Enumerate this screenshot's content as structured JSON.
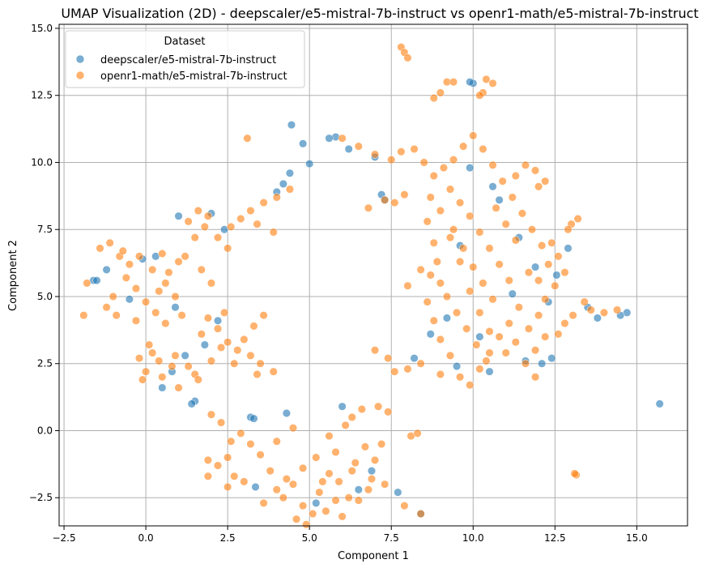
{
  "chart_data": {
    "type": "scatter",
    "title": "UMAP Visualization (2D) - deepscaler/e5-mistral-7b-instruct vs openr1-math/e5-mistral-7b-instruct",
    "xlabel": "Component 1",
    "ylabel": "Component 2",
    "xlim": [
      -2.65,
      16.55
    ],
    "ylim": [
      -3.55,
      15.15
    ],
    "xticks": [
      -2.5,
      0.0,
      2.5,
      5.0,
      7.5,
      10.0,
      12.5,
      15.0
    ],
    "yticks": [
      -2.5,
      0.0,
      2.5,
      5.0,
      7.5,
      10.0,
      12.5,
      15.0
    ],
    "xtick_labels": [
      "−2.5",
      "0.0",
      "2.5",
      "5.0",
      "7.5",
      "10.0",
      "12.5",
      "15.0"
    ],
    "ytick_labels": [
      "−2.5",
      "0.0",
      "2.5",
      "5.0",
      "7.5",
      "10.0",
      "12.5",
      "15.0"
    ],
    "grid": true,
    "legend": {
      "title": "Dataset",
      "placement": "top-left"
    },
    "series": [
      {
        "name": "deepscaler/e5-mistral-7b-instruct",
        "color": "#1f77b4",
        "points": [
          [
            15.7,
            1.0
          ],
          [
            4.45,
            11.4
          ],
          [
            4.8,
            10.7
          ],
          [
            5.0,
            9.95
          ],
          [
            10.0,
            12.95
          ],
          [
            9.9,
            13.0
          ],
          [
            14.7,
            4.4
          ],
          [
            14.5,
            4.3
          ],
          [
            12.9,
            6.8
          ],
          [
            12.55,
            5.8
          ],
          [
            12.3,
            4.8
          ],
          [
            12.4,
            2.7
          ],
          [
            12.1,
            2.5
          ],
          [
            4.3,
            0.65
          ],
          [
            3.35,
            -2.1
          ],
          [
            7.7,
            -2.3
          ],
          [
            8.4,
            -3.1
          ],
          [
            -1.6,
            5.6
          ],
          [
            -1.5,
            5.6
          ],
          [
            -1.2,
            6.0
          ],
          [
            1.5,
            1.1
          ],
          [
            1.4,
            1.0
          ],
          [
            -0.1,
            6.4
          ],
          [
            0.3,
            6.5
          ],
          [
            5.8,
            10.95
          ],
          [
            5.6,
            10.9
          ],
          [
            7.2,
            8.8
          ],
          [
            7.3,
            8.6
          ],
          [
            9.5,
            2.4
          ],
          [
            10.5,
            2.2
          ],
          [
            11.6,
            2.6
          ],
          [
            8.7,
            3.6
          ],
          [
            2.0,
            8.1
          ],
          [
            2.4,
            7.5
          ],
          [
            1.0,
            8.0
          ],
          [
            3.2,
            0.5
          ],
          [
            3.3,
            0.45
          ],
          [
            6.0,
            0.9
          ],
          [
            4.0,
            8.9
          ],
          [
            4.2,
            9.2
          ],
          [
            4.4,
            9.6
          ],
          [
            9.2,
            4.2
          ],
          [
            10.2,
            3.5
          ],
          [
            11.2,
            5.1
          ],
          [
            9.6,
            6.9
          ],
          [
            10.8,
            8.6
          ],
          [
            0.8,
            2.2
          ],
          [
            1.2,
            2.8
          ],
          [
            0.5,
            1.6
          ],
          [
            5.2,
            -2.7
          ],
          [
            6.5,
            -2.2
          ],
          [
            6.9,
            -1.5
          ],
          [
            13.8,
            4.2
          ],
          [
            13.5,
            4.6
          ],
          [
            1.8,
            3.2
          ],
          [
            2.2,
            4.1
          ],
          [
            0.9,
            4.6
          ],
          [
            -0.5,
            4.9
          ],
          [
            11.4,
            7.2
          ],
          [
            11.9,
            6.1
          ],
          [
            6.2,
            10.5
          ],
          [
            7.0,
            10.2
          ],
          [
            8.2,
            2.7
          ],
          [
            9.9,
            9.8
          ],
          [
            10.6,
            9.1
          ]
        ]
      },
      {
        "name": "openr1-math/e5-mistral-7b-instruct",
        "color": "#ff7f0e",
        "points": [
          [
            7.8,
            14.3
          ],
          [
            7.9,
            14.1
          ],
          [
            8.0,
            13.9
          ],
          [
            9.2,
            13.0
          ],
          [
            9.4,
            13.0
          ],
          [
            9.0,
            12.6
          ],
          [
            8.8,
            12.4
          ],
          [
            10.4,
            13.1
          ],
          [
            10.6,
            12.95
          ],
          [
            10.3,
            12.6
          ],
          [
            10.2,
            12.5
          ],
          [
            3.1,
            10.9
          ],
          [
            13.15,
            -1.65
          ],
          [
            13.1,
            -1.6
          ],
          [
            13.0,
            7.7
          ],
          [
            13.2,
            7.9
          ],
          [
            12.9,
            7.5
          ],
          [
            13.05,
            4.3
          ],
          [
            13.6,
            4.5
          ],
          [
            14.0,
            4.4
          ],
          [
            14.4,
            4.5
          ],
          [
            13.4,
            4.8
          ],
          [
            12.8,
            4.0
          ],
          [
            12.6,
            3.6
          ],
          [
            -1.9,
            4.3
          ],
          [
            -1.8,
            5.5
          ],
          [
            -1.0,
            5.0
          ],
          [
            -0.8,
            6.5
          ],
          [
            -0.5,
            6.2
          ],
          [
            0.2,
            6.0
          ],
          [
            0.6,
            5.5
          ],
          [
            0.9,
            5.0
          ],
          [
            1.2,
            6.5
          ],
          [
            1.6,
            8.2
          ],
          [
            1.9,
            8.0
          ],
          [
            1.3,
            7.8
          ],
          [
            2.6,
            7.6
          ],
          [
            2.9,
            7.9
          ],
          [
            3.2,
            8.2
          ],
          [
            3.6,
            8.5
          ],
          [
            4.0,
            8.7
          ],
          [
            4.4,
            9.0
          ],
          [
            3.4,
            7.7
          ],
          [
            3.9,
            7.4
          ],
          [
            0.1,
            3.2
          ],
          [
            0.4,
            2.6
          ],
          [
            0.0,
            2.2
          ],
          [
            0.8,
            2.4
          ],
          [
            1.0,
            1.6
          ],
          [
            1.5,
            2.1
          ],
          [
            1.6,
            1.9
          ],
          [
            1.7,
            3.6
          ],
          [
            1.9,
            4.2
          ],
          [
            2.2,
            3.8
          ],
          [
            2.5,
            3.3
          ],
          [
            2.8,
            3.0
          ],
          [
            3.2,
            2.8
          ],
          [
            3.5,
            2.5
          ],
          [
            3.9,
            2.2
          ],
          [
            2.4,
            4.4
          ],
          [
            1.7,
            6.0
          ],
          [
            2.0,
            5.5
          ],
          [
            2.0,
            0.6
          ],
          [
            2.3,
            0.3
          ],
          [
            2.6,
            -0.4
          ],
          [
            2.5,
            -1.0
          ],
          [
            2.2,
            -1.3
          ],
          [
            1.9,
            -1.1
          ],
          [
            1.9,
            -1.7
          ],
          [
            2.9,
            -0.1
          ],
          [
            3.2,
            -0.5
          ],
          [
            3.5,
            -0.9
          ],
          [
            3.8,
            -1.5
          ],
          [
            3.6,
            -2.7
          ],
          [
            4.0,
            -2.2
          ],
          [
            4.3,
            -1.8
          ],
          [
            4.6,
            -3.3
          ],
          [
            4.9,
            -3.5
          ],
          [
            5.1,
            -3.1
          ],
          [
            5.3,
            -2.3
          ],
          [
            5.6,
            -1.6
          ],
          [
            5.8,
            -0.8
          ],
          [
            5.9,
            -1.9
          ],
          [
            6.2,
            -2.5
          ],
          [
            6.4,
            -1.2
          ],
          [
            6.7,
            -0.6
          ],
          [
            6.9,
            -1.8
          ],
          [
            6.5,
            -2.6
          ],
          [
            6.3,
            0.5
          ],
          [
            6.6,
            0.8
          ],
          [
            7.1,
            0.9
          ],
          [
            7.2,
            -0.5
          ],
          [
            7.4,
            0.7
          ],
          [
            7.9,
            -2.8
          ],
          [
            8.4,
            -3.1
          ],
          [
            8.1,
            -0.2
          ],
          [
            8.3,
            -0.1
          ],
          [
            7.6,
            2.2
          ],
          [
            8.0,
            2.3
          ],
          [
            8.4,
            2.5
          ],
          [
            7.0,
            3.0
          ],
          [
            7.4,
            2.7
          ],
          [
            6.0,
            10.9
          ],
          [
            6.5,
            10.6
          ],
          [
            7.0,
            10.3
          ],
          [
            7.5,
            10.1
          ],
          [
            7.8,
            10.4
          ],
          [
            8.2,
            10.5
          ],
          [
            7.3,
            8.6
          ],
          [
            7.6,
            8.5
          ],
          [
            7.9,
            8.8
          ],
          [
            6.8,
            8.3
          ],
          [
            8.5,
            10.0
          ],
          [
            8.8,
            9.5
          ],
          [
            8.7,
            8.7
          ],
          [
            8.6,
            7.8
          ],
          [
            8.8,
            7.0
          ],
          [
            8.9,
            6.3
          ],
          [
            9.0,
            5.5
          ],
          [
            8.4,
            6.0
          ],
          [
            8.0,
            5.4
          ],
          [
            8.6,
            4.8
          ],
          [
            8.8,
            4.1
          ],
          [
            9.0,
            3.4
          ],
          [
            9.3,
            2.8
          ],
          [
            9.6,
            2.0
          ],
          [
            9.9,
            1.7
          ],
          [
            10.2,
            2.3
          ],
          [
            10.5,
            2.9
          ],
          [
            10.8,
            3.5
          ],
          [
            11.1,
            4.0
          ],
          [
            11.4,
            4.6
          ],
          [
            11.7,
            3.8
          ],
          [
            11.9,
            3.0
          ],
          [
            11.6,
            2.5
          ],
          [
            12.0,
            4.3
          ],
          [
            12.2,
            4.9
          ],
          [
            12.5,
            5.4
          ],
          [
            12.3,
            6.2
          ],
          [
            12.1,
            6.9
          ],
          [
            11.8,
            7.5
          ],
          [
            11.5,
            8.1
          ],
          [
            11.2,
            8.7
          ],
          [
            10.9,
            9.3
          ],
          [
            10.6,
            9.9
          ],
          [
            10.3,
            10.5
          ],
          [
            10.0,
            11.0
          ],
          [
            9.7,
            10.6
          ],
          [
            9.4,
            10.1
          ],
          [
            9.1,
            9.8
          ],
          [
            9.3,
            9.0
          ],
          [
            9.6,
            8.5
          ],
          [
            9.9,
            8.0
          ],
          [
            10.2,
            7.4
          ],
          [
            10.5,
            6.8
          ],
          [
            10.8,
            6.2
          ],
          [
            11.1,
            5.6
          ],
          [
            9.4,
            7.5
          ],
          [
            9.7,
            6.8
          ],
          [
            10.0,
            6.1
          ],
          [
            10.3,
            5.5
          ],
          [
            10.6,
            4.9
          ],
          [
            9.2,
            5.0
          ],
          [
            9.5,
            4.4
          ],
          [
            9.8,
            3.8
          ],
          [
            10.1,
            3.2
          ],
          [
            10.4,
            2.6
          ],
          [
            11.0,
            2.9
          ],
          [
            11.3,
            3.3
          ],
          [
            12.0,
            9.1
          ],
          [
            12.2,
            9.3
          ],
          [
            11.9,
            9.7
          ],
          [
            11.6,
            9.9
          ],
          [
            11.3,
            9.5
          ],
          [
            12.4,
            7.0
          ],
          [
            12.6,
            6.5
          ],
          [
            12.8,
            5.9
          ],
          [
            12.0,
            5.6
          ],
          [
            11.7,
            5.9
          ],
          [
            9.0,
            2.1
          ],
          [
            11.9,
            2.0
          ],
          [
            12.2,
            3.5
          ],
          [
            10.7,
            8.3
          ],
          [
            11.0,
            7.7
          ],
          [
            11.3,
            7.1
          ],
          [
            8.7,
            5.8
          ],
          [
            9.0,
            8.2
          ],
          [
            9.3,
            7.2
          ],
          [
            9.6,
            6.3
          ],
          [
            9.9,
            5.2
          ],
          [
            10.2,
            4.4
          ],
          [
            10.5,
            3.7
          ],
          [
            -1.2,
            4.6
          ],
          [
            -0.9,
            4.3
          ],
          [
            -0.3,
            4.1
          ],
          [
            0.3,
            4.4
          ],
          [
            0.6,
            4.0
          ],
          [
            1.1,
            4.3
          ],
          [
            -0.6,
            5.7
          ],
          [
            -0.3,
            5.3
          ],
          [
            0.0,
            4.8
          ],
          [
            0.4,
            5.2
          ],
          [
            0.7,
            5.9
          ],
          [
            1.0,
            6.3
          ],
          [
            -1.4,
            6.8
          ],
          [
            -1.1,
            7.0
          ],
          [
            -0.7,
            6.7
          ],
          [
            -0.2,
            6.5
          ],
          [
            0.5,
            6.6
          ],
          [
            1.5,
            7.2
          ],
          [
            1.8,
            7.6
          ],
          [
            2.2,
            7.2
          ],
          [
            2.5,
            6.8
          ],
          [
            -0.2,
            2.7
          ],
          [
            0.2,
            2.9
          ],
          [
            0.5,
            2.0
          ],
          [
            0.9,
            2.8
          ],
          [
            1.3,
            2.4
          ],
          [
            -0.1,
            1.9
          ],
          [
            2.0,
            2.6
          ],
          [
            2.3,
            3.1
          ],
          [
            2.7,
            2.5
          ],
          [
            3.0,
            3.4
          ],
          [
            3.3,
            3.9
          ],
          [
            3.6,
            4.3
          ],
          [
            3.4,
            2.1
          ],
          [
            4.5,
            0.1
          ],
          [
            4.0,
            -0.4
          ],
          [
            2.7,
            -1.7
          ],
          [
            2.5,
            -2.1
          ],
          [
            3.0,
            -1.9
          ],
          [
            5.5,
            -3.0
          ],
          [
            5.8,
            -2.6
          ],
          [
            6.0,
            -3.2
          ],
          [
            6.8,
            -2.2
          ],
          [
            7.0,
            -1.1
          ],
          [
            6.1,
            0.2
          ],
          [
            5.6,
            -0.2
          ],
          [
            5.2,
            -1.0
          ],
          [
            4.8,
            -1.4
          ],
          [
            4.5,
            -2.0
          ],
          [
            4.2,
            -2.5
          ],
          [
            4.8,
            -2.8
          ],
          [
            5.4,
            -1.9
          ],
          [
            6.3,
            -1.5
          ],
          [
            7.3,
            -2.0
          ]
        ]
      }
    ]
  }
}
